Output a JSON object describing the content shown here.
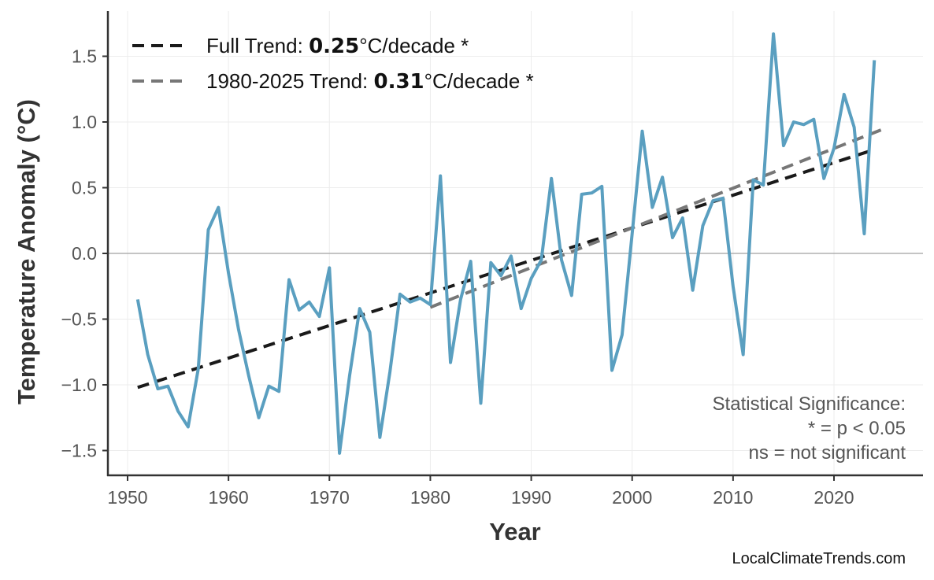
{
  "chart_data": {
    "type": "line",
    "xlabel": "Year",
    "ylabel": "Temperature Anomaly (°C)",
    "xlim": [
      1947,
      2029
    ],
    "ylim": [
      -1.68,
      1.77
    ],
    "xticks": [
      1950,
      1960,
      1970,
      1980,
      1990,
      2000,
      2010,
      2020
    ],
    "yticks": [
      -1.5,
      -1.0,
      -0.5,
      0.0,
      0.5,
      1.0,
      1.5
    ],
    "ytick_labels": [
      "−1.5",
      "−1.0",
      "−0.5",
      "0.0",
      "0.5",
      "1.0",
      "1.5"
    ],
    "grid": true,
    "legend_position": "top-left",
    "colors": {
      "series": "#5a9fc0",
      "full_trend": "#1a1a1a",
      "recent_trend": "#777777",
      "zero_line": "#b0b0b0"
    },
    "series": [
      {
        "x": [
          1951,
          1952,
          1953,
          1954,
          1955,
          1956,
          1957,
          1958,
          1959,
          1960,
          1961,
          1962,
          1963,
          1964,
          1965,
          1966,
          1967,
          1968,
          1969,
          1970,
          1971,
          1972,
          1973,
          1974,
          1975,
          1976,
          1977,
          1978,
          1979,
          1980,
          1981,
          1982,
          1983,
          1984,
          1985,
          1986,
          1987,
          1988,
          1989,
          1990,
          1991,
          1992,
          1993,
          1994,
          1995,
          1996,
          1997,
          1998,
          1999,
          2000,
          2001,
          2002,
          2003,
          2004,
          2005,
          2006,
          2007,
          2008,
          2009,
          2010,
          2011,
          2012,
          2013,
          2014,
          2015,
          2016,
          2017,
          2018,
          2019,
          2020,
          2021,
          2022,
          2023,
          2024
        ],
        "values": [
          -0.35,
          -0.77,
          -1.03,
          -1.01,
          -1.2,
          -1.32,
          -0.88,
          0.18,
          0.35,
          -0.15,
          -0.58,
          -0.93,
          -1.25,
          -1.01,
          -1.05,
          -0.2,
          -0.43,
          -0.37,
          -0.48,
          -0.11,
          -1.52,
          -0.93,
          -0.42,
          -0.6,
          -1.4,
          -0.9,
          -0.31,
          -0.37,
          -0.34,
          -0.39,
          0.59,
          -0.83,
          -0.35,
          -0.06,
          -1.14,
          -0.07,
          -0.17,
          -0.02,
          -0.42,
          -0.19,
          -0.05,
          0.57,
          -0.05,
          -0.32,
          0.45,
          0.46,
          0.51,
          -0.89,
          -0.62,
          0.15,
          0.93,
          0.35,
          0.58,
          0.12,
          0.27,
          -0.28,
          0.21,
          0.4,
          0.42,
          -0.25,
          -0.77,
          0.56,
          0.52,
          1.67,
          0.82,
          1.0,
          0.98,
          1.02,
          0.57,
          0.8,
          1.21,
          0.96,
          0.15,
          1.47
        ]
      }
    ],
    "trends": [
      {
        "label_prefix": "Full Trend: ",
        "rate": "0.25",
        "label_suffix": "°C/decade *",
        "x": [
          1951,
          2024
        ],
        "values": [
          -1.02,
          0.79
        ]
      },
      {
        "label_prefix": "1980-2025 Trend: ",
        "rate": "0.31",
        "label_suffix": "°C/decade *",
        "x": [
          1980,
          2025
        ],
        "values": [
          -0.41,
          0.95
        ]
      }
    ],
    "annotation": [
      "Statistical Significance:",
      "* = p < 0.05",
      "ns = not significant"
    ]
  },
  "watermark": "LocalClimateTrends.com"
}
